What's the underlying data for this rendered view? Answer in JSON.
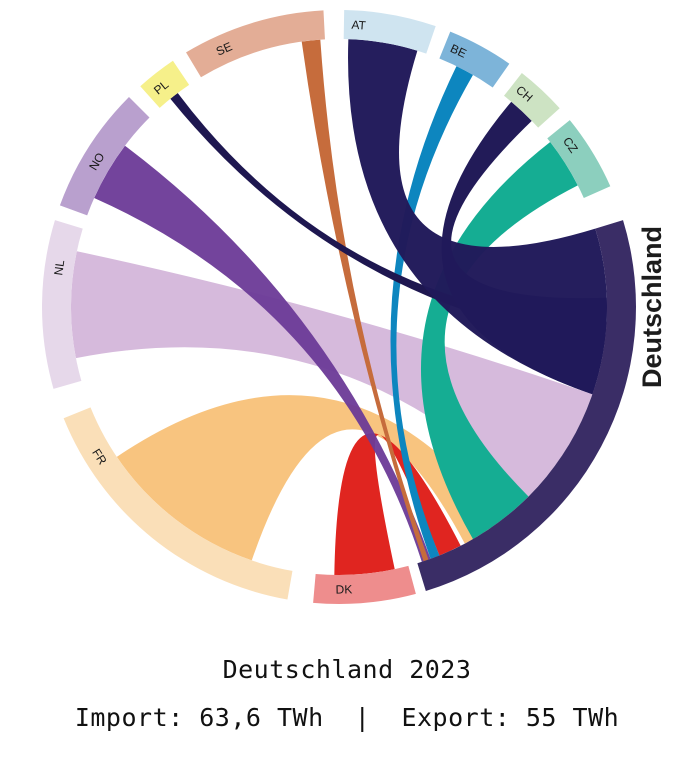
{
  "diagram": {
    "main_country": {
      "label": "Deutschland",
      "color": "#3a2d66"
    },
    "countries": [
      {
        "code": "AT",
        "color": "#cfe4f0"
      },
      {
        "code": "BE",
        "color": "#7db4d9"
      },
      {
        "code": "CH",
        "color": "#cde3c3"
      },
      {
        "code": "CZ",
        "color": "#8ccfbe"
      },
      {
        "code": "DK",
        "color": "#ee8d8d"
      },
      {
        "code": "FR",
        "color": "#fadfb8"
      },
      {
        "code": "NL",
        "color": "#e6d8ea"
      },
      {
        "code": "NO",
        "color": "#b9a0ce"
      },
      {
        "code": "PL",
        "color": "#f6f08a"
      },
      {
        "code": "SE",
        "color": "#e3ad96"
      }
    ],
    "flow_colors": {
      "AT": "#211a5a",
      "BE": "#0d86bf",
      "CH": "#221b58",
      "CZ": "#15ad93",
      "DK": "#e02520",
      "FR": "#f7bf74",
      "NL": "#d1b2d8",
      "NO": "#6c3a97",
      "PL": "#1e1750",
      "SE": "#c66c3c"
    }
  },
  "caption": {
    "title": "Deutschland 2023",
    "import_label": "Import: 63,6 TWh",
    "separator": "|",
    "export_label": "Export: 55 TWh"
  }
}
